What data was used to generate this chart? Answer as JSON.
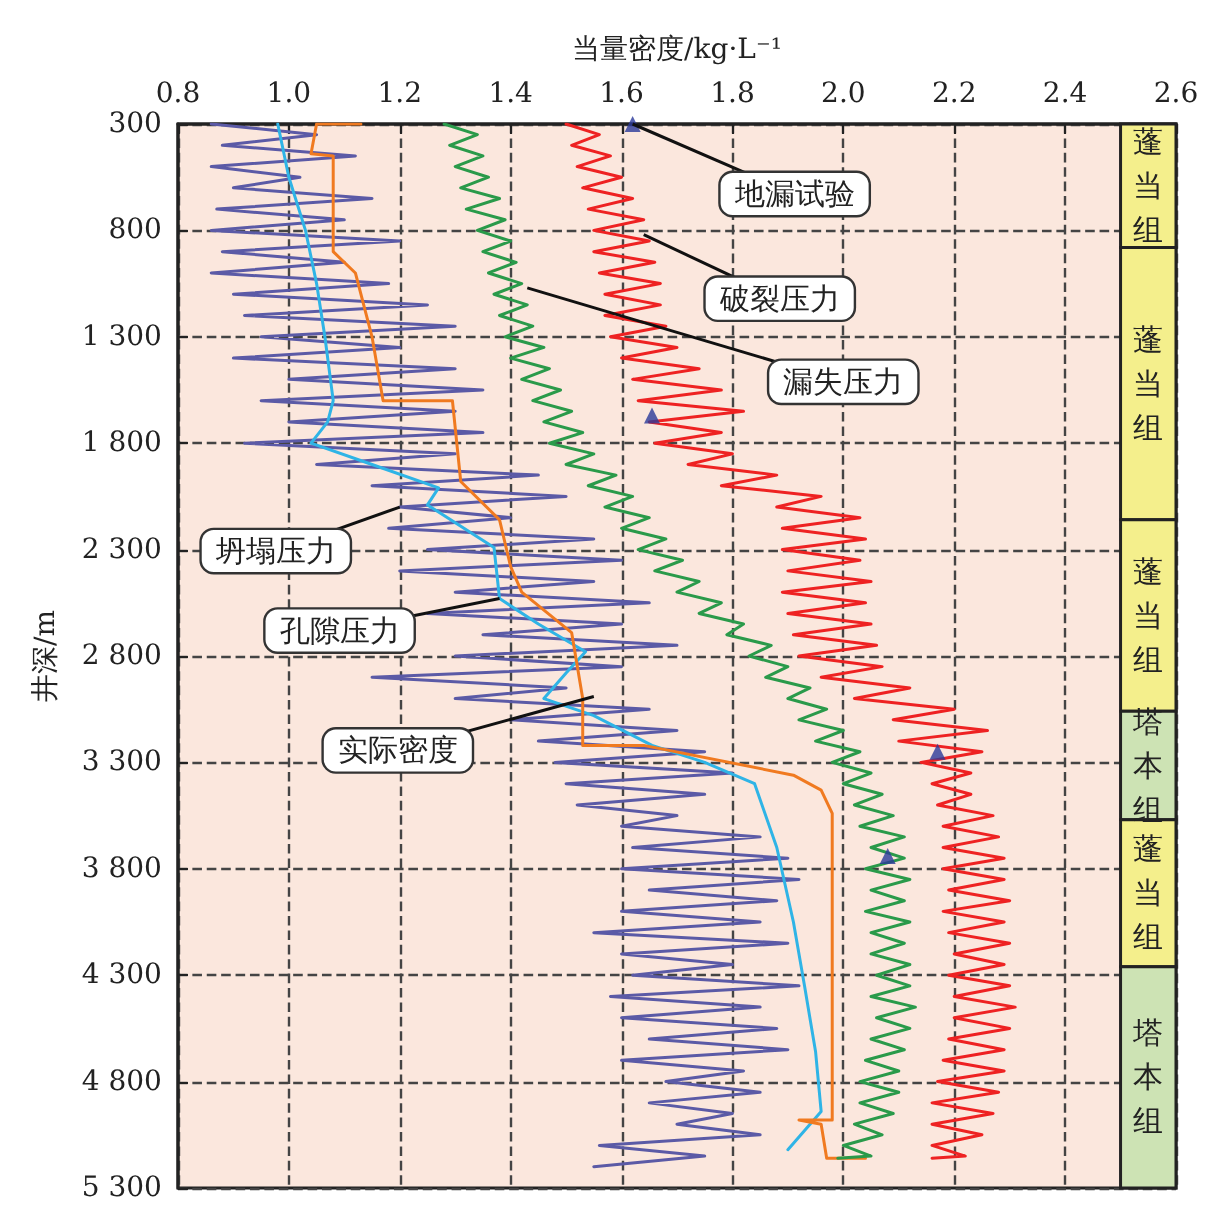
{
  "chart_data": {
    "type": "line",
    "xlabel": "当量密度/kg·L⁻¹",
    "ylabel": "井深/m",
    "xlim": [
      0.8,
      2.6
    ],
    "xticks": [
      0.8,
      {
        "value": 1,
        "label": "1.0"
      },
      1.2,
      1.4,
      1.6,
      1.8,
      {
        "value": 2,
        "label": "2.0"
      },
      2.2,
      2.4,
      2.6
    ],
    "ylim": [
      5300,
      300
    ],
    "yticks": [
      300,
      800,
      {
        "value": 1300,
        "label": "1 300"
      },
      {
        "value": 1800,
        "label": "1 800"
      },
      {
        "value": 2300,
        "label": "2 300"
      },
      {
        "value": 2800,
        "label": "2 800"
      },
      {
        "value": 3300,
        "label": "3 300"
      },
      {
        "value": 3800,
        "label": "3 800"
      },
      {
        "value": 4300,
        "label": "4 300"
      },
      {
        "value": 4800,
        "label": "4 800"
      },
      {
        "value": 5300,
        "label": "5 300"
      }
    ],
    "grid": true,
    "line_style": "solid",
    "series": [
      {
        "color": "#5b5aa6",
        "x": [
          0.86,
          1.05,
          0.88,
          1.12,
          0.86,
          1.02,
          0.9,
          1.15,
          0.87,
          1.1,
          0.86,
          1.2,
          0.88,
          1.1,
          0.86,
          1.18,
          0.9,
          1.25,
          0.92,
          1.3,
          0.95,
          1.2,
          0.9,
          1.3,
          1.0,
          1.35,
          0.95,
          1.3,
          1.0,
          1.35,
          0.92,
          1.3,
          1.05,
          1.45,
          1.15,
          1.5,
          1.2,
          1.4,
          1.18,
          1.55,
          1.25,
          1.6,
          1.2,
          1.55,
          1.3,
          1.65,
          1.25,
          1.6,
          1.35,
          1.7,
          1.3,
          1.6,
          1.15,
          1.5,
          1.3,
          1.65,
          1.4,
          1.7,
          1.45,
          1.75,
          1.48,
          1.8,
          1.5,
          1.75,
          1.52,
          1.7,
          1.6,
          1.85,
          1.62,
          1.9,
          1.6,
          1.92,
          1.65,
          1.88,
          1.6,
          1.85,
          1.55,
          1.9,
          1.6,
          1.8,
          1.62,
          1.92,
          1.58,
          1.85,
          1.6,
          1.88,
          1.65,
          1.9,
          1.6,
          1.82,
          1.68,
          1.85,
          1.65,
          1.8,
          1.7,
          1.85,
          1.56,
          1.75,
          1.55
        ],
        "values": [
          300,
          350,
          400,
          450,
          500,
          550,
          600,
          650,
          700,
          750,
          800,
          850,
          900,
          950,
          1000,
          1050,
          1100,
          1150,
          1200,
          1250,
          1300,
          1350,
          1400,
          1450,
          1500,
          1550,
          1600,
          1650,
          1700,
          1750,
          1800,
          1850,
          1900,
          1950,
          2000,
          2050,
          2100,
          2150,
          2200,
          2250,
          2300,
          2350,
          2400,
          2450,
          2500,
          2550,
          2600,
          2650,
          2700,
          2750,
          2800,
          2850,
          2900,
          2950,
          3000,
          3050,
          3100,
          3150,
          3200,
          3250,
          3300,
          3350,
          3400,
          3450,
          3500,
          3550,
          3600,
          3650,
          3700,
          3750,
          3800,
          3850,
          3900,
          3950,
          4000,
          4050,
          4100,
          4150,
          4200,
          4250,
          4300,
          4350,
          4400,
          4450,
          4500,
          4550,
          4600,
          4650,
          4700,
          4750,
          4800,
          4850,
          4900,
          4950,
          5000,
          5050,
          5100,
          5150,
          5200
        ]
      },
      {
        "color": "#2fb4e6",
        "x": [
          0.98,
          1.0,
          1.03,
          1.05,
          1.065,
          1.08,
          1.07,
          1.04,
          1.15,
          1.27,
          1.25,
          1.37,
          1.38,
          1.45,
          1.535,
          1.5,
          1.46,
          1.55,
          1.655,
          1.75,
          1.84,
          1.88,
          1.91,
          1.93,
          1.95,
          1.96,
          1.9
        ],
        "values": [
          300,
          550,
          800,
          1050,
          1300,
          1600,
          1700,
          1800,
          1900,
          2010,
          2090,
          2290,
          2530,
          2650,
          2780,
          2880,
          3000,
          3080,
          3220,
          3300,
          3400,
          3700,
          4050,
          4350,
          4660,
          4940,
          5120
        ]
      },
      {
        "color": "#f07a20",
        "x": [
          1.13,
          1.05,
          1.04,
          1.08,
          1.08,
          1.12,
          1.15,
          1.17,
          1.295,
          1.31,
          1.38,
          1.4,
          1.42,
          1.51,
          1.53,
          1.53,
          1.64,
          1.91,
          1.96,
          1.98,
          1.98,
          1.92,
          1.96,
          1.97,
          2.04
        ],
        "values": [
          300,
          300,
          440,
          450,
          900,
          1000,
          1300,
          1600,
          1600,
          1980,
          2160,
          2380,
          2500,
          2690,
          3000,
          3220,
          3220,
          3360,
          3430,
          3540,
          4980,
          4980,
          5000,
          5160,
          5160
        ]
      },
      {
        "color": "#2a9a4a",
        "x": [
          1.28,
          1.34,
          1.29,
          1.35,
          1.3,
          1.36,
          1.31,
          1.38,
          1.32,
          1.39,
          1.34,
          1.4,
          1.35,
          1.41,
          1.36,
          1.42,
          1.37,
          1.43,
          1.38,
          1.44,
          1.39,
          1.46,
          1.4,
          1.47,
          1.42,
          1.49,
          1.44,
          1.51,
          1.46,
          1.53,
          1.47,
          1.55,
          1.5,
          1.59,
          1.54,
          1.62,
          1.57,
          1.65,
          1.6,
          1.68,
          1.63,
          1.71,
          1.66,
          1.74,
          1.7,
          1.78,
          1.74,
          1.82,
          1.79,
          1.87,
          1.83,
          1.9,
          1.86,
          1.94,
          1.9,
          1.97,
          1.92,
          2.0,
          1.95,
          2.03,
          1.98,
          2.05,
          2.0,
          2.07,
          2.02,
          2.09,
          2.03,
          2.11,
          2.05,
          2.11,
          2.04,
          2.12,
          2.05,
          2.11,
          2.04,
          2.12,
          2.05,
          2.11,
          2.05,
          2.12,
          2.06,
          2.12,
          2.05,
          2.13,
          2.06,
          2.12,
          2.05,
          2.11,
          2.04,
          2.1,
          2.03,
          2.1,
          2.03,
          2.09,
          2.02,
          2.07,
          2.0,
          2.05,
          1.99
        ],
        "values": [
          300,
          350,
          400,
          450,
          500,
          550,
          600,
          650,
          700,
          750,
          800,
          850,
          900,
          950,
          1000,
          1050,
          1100,
          1150,
          1200,
          1250,
          1300,
          1350,
          1400,
          1450,
          1500,
          1550,
          1600,
          1650,
          1700,
          1750,
          1800,
          1850,
          1900,
          1950,
          2000,
          2050,
          2100,
          2150,
          2200,
          2250,
          2300,
          2350,
          2400,
          2450,
          2500,
          2550,
          2600,
          2650,
          2700,
          2750,
          2800,
          2850,
          2900,
          2950,
          3000,
          3050,
          3100,
          3150,
          3200,
          3250,
          3300,
          3350,
          3400,
          3450,
          3500,
          3550,
          3600,
          3650,
          3700,
          3750,
          3800,
          3850,
          3900,
          3950,
          4000,
          4050,
          4100,
          4150,
          4200,
          4250,
          4300,
          4350,
          4400,
          4450,
          4500,
          4550,
          4600,
          4650,
          4700,
          4750,
          4800,
          4850,
          4900,
          4950,
          5000,
          5050,
          5100,
          5150,
          5160
        ]
      },
      {
        "color": "#ee2222",
        "x": [
          1.5,
          1.56,
          1.51,
          1.58,
          1.52,
          1.6,
          1.53,
          1.62,
          1.54,
          1.64,
          1.55,
          1.65,
          1.55,
          1.66,
          1.56,
          1.67,
          1.57,
          1.67,
          1.57,
          1.68,
          1.58,
          1.7,
          1.6,
          1.74,
          1.62,
          1.78,
          1.63,
          1.82,
          1.65,
          1.78,
          1.66,
          1.8,
          1.72,
          1.88,
          1.78,
          1.96,
          1.88,
          2.03,
          1.89,
          2.04,
          1.89,
          2.03,
          1.9,
          2.05,
          1.89,
          2.04,
          1.9,
          2.05,
          1.91,
          2.06,
          1.92,
          2.07,
          1.96,
          2.12,
          2.02,
          2.2,
          2.09,
          2.26,
          2.1,
          2.25,
          2.14,
          2.23,
          2.16,
          2.23,
          2.17,
          2.27,
          2.18,
          2.28,
          2.18,
          2.29,
          2.18,
          2.29,
          2.19,
          2.3,
          2.18,
          2.29,
          2.19,
          2.3,
          2.2,
          2.29,
          2.19,
          2.3,
          2.2,
          2.31,
          2.2,
          2.3,
          2.19,
          2.29,
          2.18,
          2.29,
          2.17,
          2.28,
          2.16,
          2.27,
          2.16,
          2.25,
          2.16,
          2.22,
          2.16
        ],
        "values": [
          300,
          350,
          400,
          450,
          500,
          550,
          600,
          650,
          700,
          750,
          800,
          850,
          900,
          950,
          1000,
          1050,
          1100,
          1150,
          1200,
          1250,
          1300,
          1350,
          1400,
          1450,
          1500,
          1550,
          1600,
          1650,
          1700,
          1750,
          1800,
          1850,
          1900,
          1950,
          2000,
          2050,
          2100,
          2150,
          2200,
          2250,
          2300,
          2350,
          2400,
          2450,
          2500,
          2550,
          2600,
          2650,
          2700,
          2750,
          2800,
          2850,
          2900,
          2950,
          3000,
          3050,
          3100,
          3150,
          3200,
          3250,
          3300,
          3350,
          3400,
          3450,
          3500,
          3550,
          3600,
          3650,
          3700,
          3750,
          3800,
          3850,
          3900,
          3950,
          4000,
          4050,
          4100,
          4150,
          4200,
          4250,
          4300,
          4350,
          4400,
          4450,
          4500,
          4550,
          4600,
          4650,
          4700,
          4750,
          4800,
          4850,
          4900,
          4950,
          5000,
          5050,
          5100,
          5150,
          5160
        ]
      },
      {
        "type": "scatter",
        "marker": "triangle",
        "color": "#2b3a9a",
        "x": [
          1.62,
          1.655,
          2.17,
          2.08
        ],
        "values": [
          300,
          1670,
          3250,
          3740
        ]
      }
    ],
    "bands": [
      {
        "axis": "y",
        "from": 300,
        "to": 880,
        "label": "蓬当组",
        "color": "#f4ef8c"
      },
      {
        "axis": "y",
        "from": 880,
        "to": 2160,
        "label": "蓬当组",
        "color": "#f4ef8c"
      },
      {
        "axis": "y",
        "from": 2160,
        "to": 3060,
        "label": "蓬当组",
        "color": "#f4ef8c"
      },
      {
        "axis": "y",
        "from": 3060,
        "to": 3570,
        "label": "塔本组",
        "color": "#cde3b4"
      },
      {
        "axis": "y",
        "from": 3570,
        "to": 4260,
        "label": "蓬当组",
        "color": "#f4ef8c"
      },
      {
        "axis": "y",
        "from": 4260,
        "to": 5300,
        "label": "塔本组",
        "color": "#cde3b4"
      }
    ],
    "annotations": [
      {
        "text": "地漏试验",
        "x": 1.62,
        "y": 300
      },
      {
        "text": "破裂压力",
        "x": 1.64,
        "y": 820
      },
      {
        "text": "漏失压力",
        "x": 1.43,
        "y": 1070
      },
      {
        "text": "坍塌压力",
        "x": 1.2,
        "y": 2100
      },
      {
        "text": "孔隙压力",
        "x": 1.38,
        "y": 2530
      },
      {
        "text": "实际密度",
        "x": 1.55,
        "y": 2990
      }
    ]
  }
}
